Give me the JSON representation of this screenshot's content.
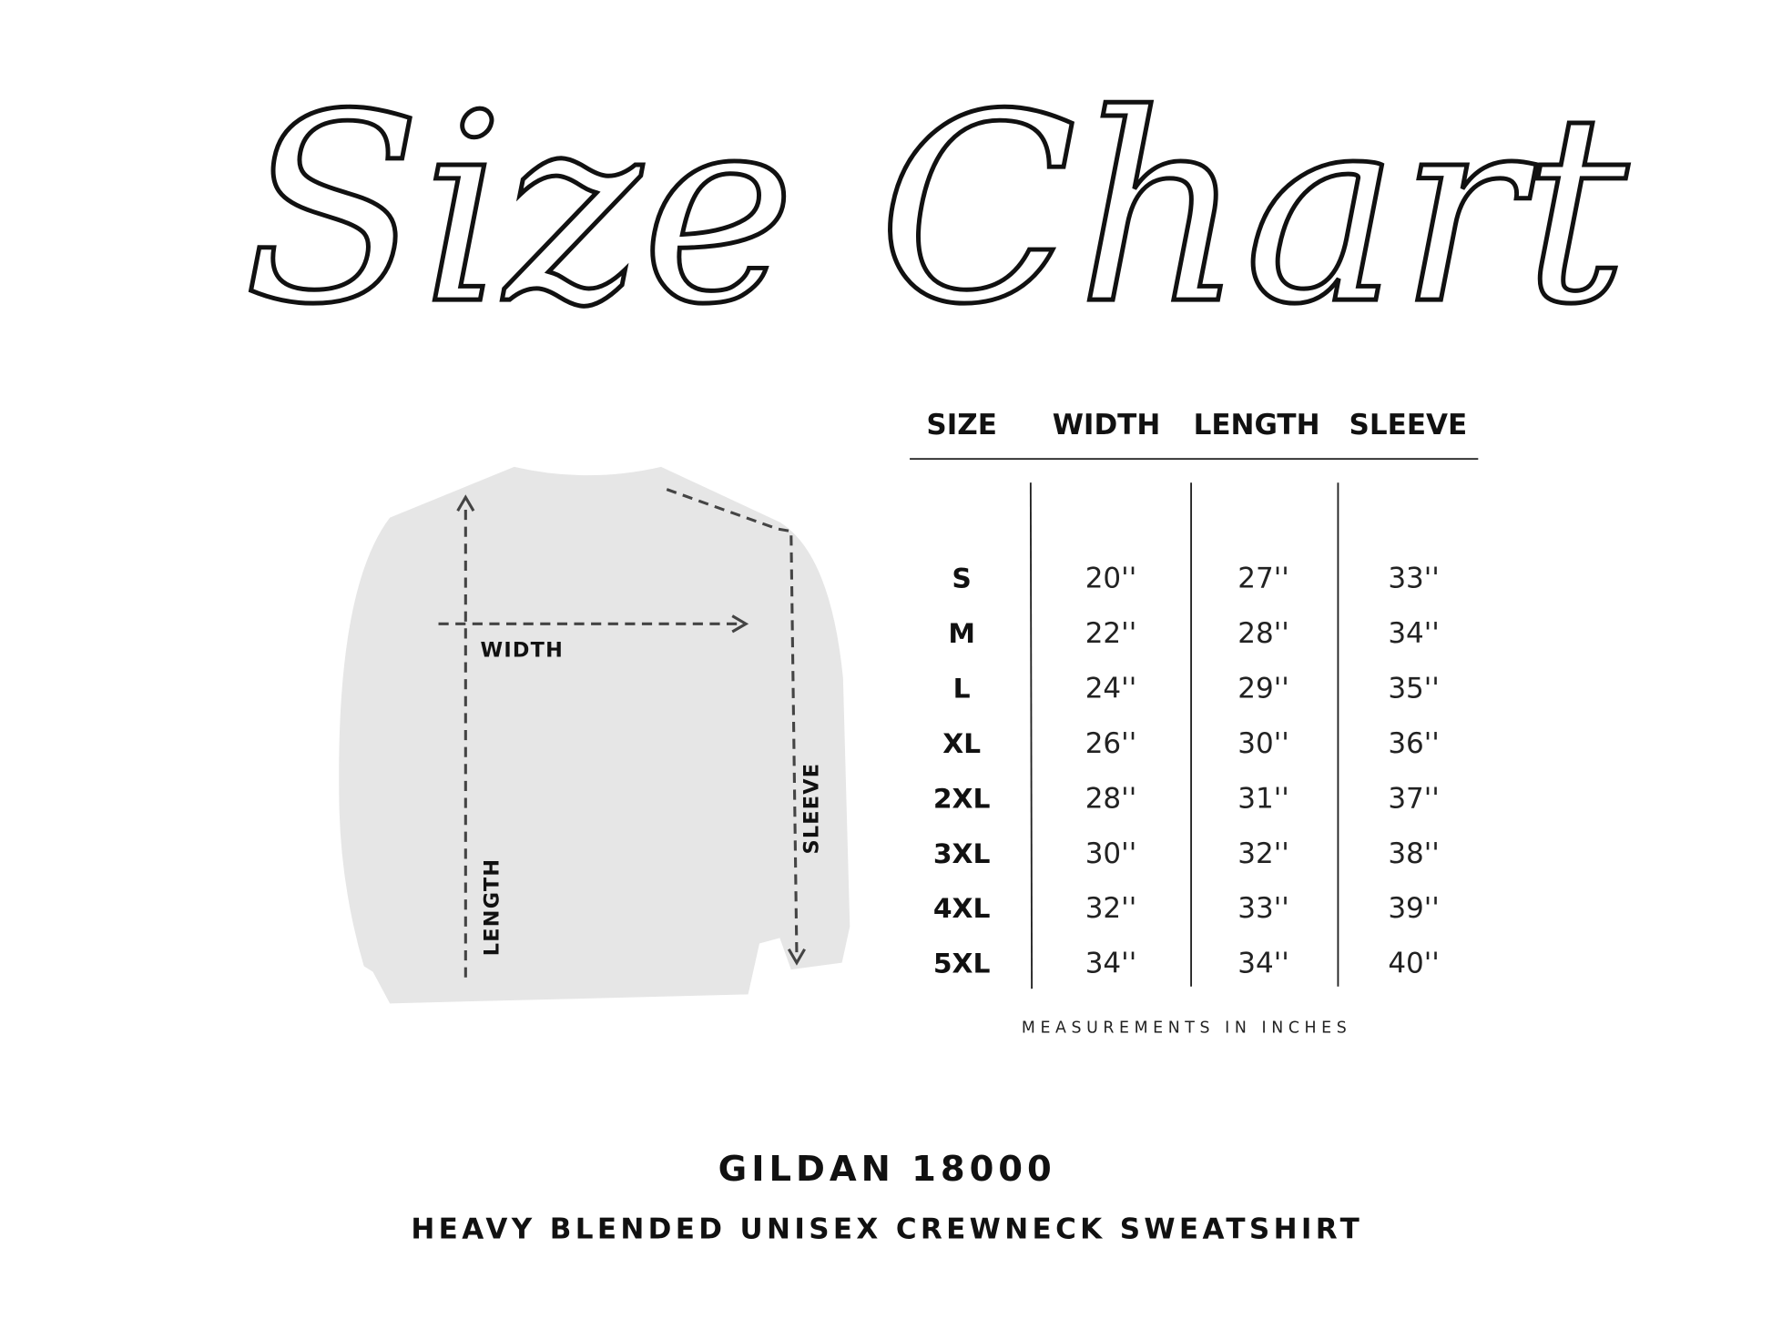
{
  "title": "Size Chart",
  "table": {
    "headers": [
      "SIZE",
      "WIDTH",
      "LENGTH",
      "SLEEVE"
    ],
    "rows": [
      {
        "size": "S",
        "width": "20''",
        "length": "27''",
        "sleeve": "33''"
      },
      {
        "size": "M",
        "width": "22''",
        "length": "28''",
        "sleeve": "34''"
      },
      {
        "size": "L",
        "width": "24''",
        "length": "29''",
        "sleeve": "35''"
      },
      {
        "size": "XL",
        "width": "26''",
        "length": "30''",
        "sleeve": "36''"
      },
      {
        "size": "2XL",
        "width": "28''",
        "length": "31''",
        "sleeve": "37''"
      },
      {
        "size": "3XL",
        "width": "30''",
        "length": "32''",
        "sleeve": "38''"
      },
      {
        "size": "4XL",
        "width": "32''",
        "length": "33''",
        "sleeve": "39''"
      },
      {
        "size": "5XL",
        "width": "34''",
        "length": "34''",
        "sleeve": "40''"
      }
    ],
    "note": "MEASUREMENTS IN INCHES"
  },
  "diagram": {
    "labels": {
      "width": "WIDTH",
      "length": "LENGTH",
      "sleeve": "SLEEVE"
    },
    "garment_color": "#e6e6e6"
  },
  "product": {
    "model": "GILDAN 18000",
    "description": "HEAVY BLENDED UNISEX CREWNECK SWEATSHIRT"
  }
}
